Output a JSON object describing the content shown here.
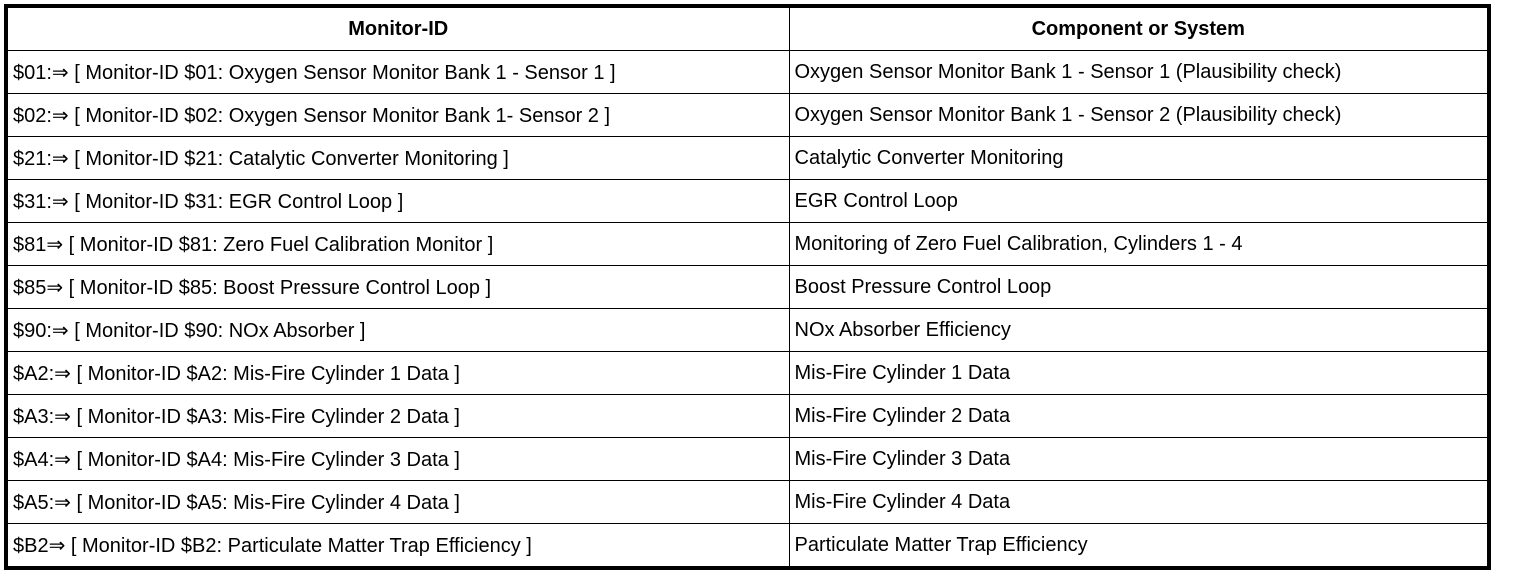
{
  "table": {
    "headers": [
      "Monitor-ID",
      "Component or System"
    ],
    "rows": [
      [
        "$01:⇒ [ Monitor-ID $01: Oxygen Sensor Monitor Bank 1 - Sensor 1 ]",
        "Oxygen Sensor Monitor Bank 1 - Sensor 1 (Plausibility check)"
      ],
      [
        "$02:⇒ [ Monitor-ID $02: Oxygen Sensor Monitor Bank 1- Sensor 2 ]",
        "Oxygen Sensor Monitor Bank 1 - Sensor 2 (Plausibility check)"
      ],
      [
        "$21:⇒ [ Monitor-ID $21: Catalytic Converter Monitoring ]",
        "Catalytic Converter Monitoring"
      ],
      [
        "$31:⇒ [ Monitor-ID $31: EGR Control Loop ]",
        "EGR Control Loop"
      ],
      [
        "$81⇒ [ Monitor-ID $81: Zero Fuel Calibration Monitor ]",
        "Monitoring of Zero Fuel Calibration, Cylinders 1 - 4"
      ],
      [
        "$85⇒ [ Monitor-ID $85: Boost Pressure Control Loop ]",
        "Boost Pressure Control Loop"
      ],
      [
        "$90:⇒ [ Monitor-ID $90: NOx Absorber ]",
        "NOx Absorber Efficiency"
      ],
      [
        "$A2:⇒ [ Monitor-ID $A2: Mis-Fire Cylinder 1 Data ]",
        "Mis-Fire Cylinder 1 Data"
      ],
      [
        "$A3:⇒ [ Monitor-ID $A3: Mis-Fire Cylinder 2 Data ]",
        "Mis-Fire Cylinder 2 Data"
      ],
      [
        "$A4:⇒ [ Monitor-ID $A4: Mis-Fire Cylinder 3 Data ]",
        "Mis-Fire Cylinder 3 Data"
      ],
      [
        "$A5:⇒ [ Monitor-ID $A5: Mis-Fire Cylinder 4 Data ]",
        "Mis-Fire Cylinder 4 Data"
      ],
      [
        "$B2⇒ [ Monitor-ID $B2: Particulate Matter Trap Efficiency ]",
        "Particulate Matter Trap Efficiency"
      ]
    ]
  }
}
